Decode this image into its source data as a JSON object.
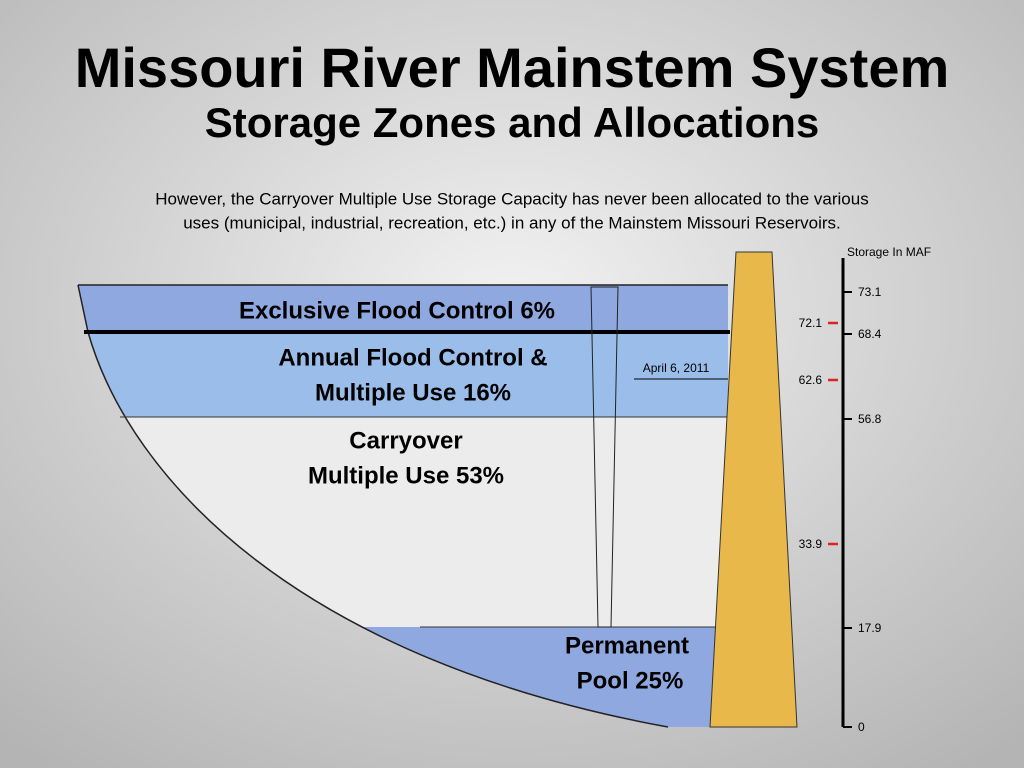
{
  "header": {
    "title": "Missouri River Mainstem System",
    "subtitle": "Storage Zones and Allocations",
    "note_lines": [
      "However, the Carryover Multiple Use Storage Capacity has never been allocated to the various",
      "uses  (municipal, industrial, recreation, etc.) in any of the Mainstem Missouri Reservoirs."
    ]
  },
  "zones": [
    {
      "lines": [
        "Exclusive Flood Control 6%"
      ]
    },
    {
      "lines": [
        "Annual Flood Control &",
        "Multiple Use 16%"
      ]
    },
    {
      "lines": [
        "Carryover",
        "Multiple Use 53%"
      ]
    },
    {
      "lines": [
        "Permanent",
        "Pool 25%"
      ]
    }
  ],
  "marker": "April 6, 2011",
  "scale": {
    "label": "Storage In MAF",
    "right_ticks": [
      73.1,
      68.4,
      56.8,
      17.9,
      0
    ],
    "left_ticks": [
      72.1,
      62.6,
      33.9
    ]
  }
}
